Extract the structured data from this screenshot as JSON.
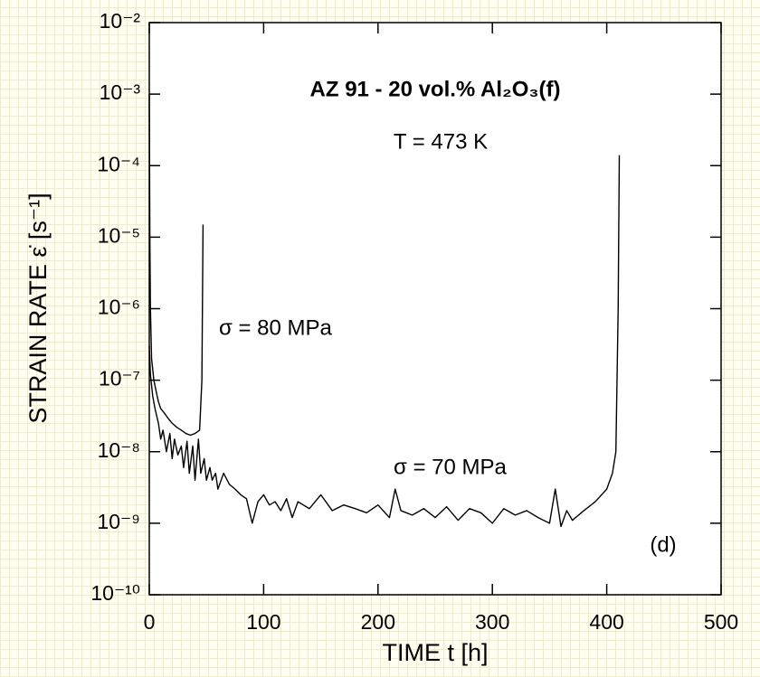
{
  "chart_data": {
    "type": "line",
    "title": "AZ 91 - 20 vol.% Al₂O₃(f)",
    "subtitle": "T = 473 K",
    "annotation": "(d)",
    "x_label": "TIME t [h]",
    "y_label": "STRAIN RATE  ε̇  [s⁻¹]",
    "xlim": [
      0,
      500
    ],
    "xticks": [
      0,
      100,
      200,
      300,
      400,
      500
    ],
    "ylim": [
      1e-10,
      0.01
    ],
    "ylog": true,
    "yticks": [
      {
        "value": 1e-10,
        "label": "10⁻¹⁰"
      },
      {
        "value": 1e-09,
        "label": "10⁻⁹"
      },
      {
        "value": 1e-08,
        "label": "10⁻⁸"
      },
      {
        "value": 1e-07,
        "label": "10⁻⁷"
      },
      {
        "value": 1e-06,
        "label": "10⁻⁶"
      },
      {
        "value": 1e-05,
        "label": "10⁻⁵"
      },
      {
        "value": 0.0001,
        "label": "10⁻⁴"
      },
      {
        "value": 0.001,
        "label": "10⁻³"
      },
      {
        "value": 0.01,
        "label": "10⁻²"
      }
    ],
    "series": [
      {
        "name": "σ = 80 MPa",
        "color": "#000000",
        "x": [
          0,
          0.5,
          1,
          2,
          4,
          6,
          8,
          10,
          13,
          16,
          20,
          24,
          28,
          32,
          36,
          40,
          44,
          46,
          47
        ],
        "values": [
          0.001,
          1e-05,
          1e-06,
          2e-07,
          1e-07,
          7e-08,
          5e-08,
          4e-08,
          3.5e-08,
          3e-08,
          2.5e-08,
          2.2e-08,
          2e-08,
          1.8e-08,
          1.7e-08,
          1.8e-08,
          2e-08,
          1e-07,
          1.5e-05
        ]
      },
      {
        "name": "σ = 70 MPa",
        "color": "#000000",
        "x": [
          0,
          1,
          3,
          5,
          8,
          10,
          12,
          15,
          18,
          20,
          22,
          25,
          28,
          30,
          33,
          35,
          38,
          40,
          43,
          45,
          48,
          50,
          53,
          55,
          58,
          60,
          65,
          70,
          75,
          80,
          85,
          90,
          95,
          100,
          105,
          110,
          115,
          120,
          125,
          130,
          140,
          150,
          160,
          170,
          180,
          190,
          200,
          210,
          215,
          220,
          230,
          240,
          250,
          260,
          270,
          280,
          290,
          300,
          310,
          320,
          330,
          340,
          350,
          355,
          360,
          365,
          370,
          380,
          390,
          400,
          405,
          408,
          410,
          411
        ],
        "values": [
          3e-07,
          1.2e-07,
          6e-08,
          4e-08,
          2.5e-08,
          1.5e-08,
          2e-08,
          1e-08,
          1.8e-08,
          8e-09,
          1.5e-08,
          9e-09,
          1.2e-08,
          6e-09,
          1.4e-08,
          5e-09,
          1.2e-08,
          4e-09,
          1.5e-08,
          5e-09,
          8e-09,
          4e-09,
          6e-09,
          4e-09,
          5e-09,
          3e-09,
          5e-09,
          3.5e-09,
          3e-09,
          2.5e-09,
          2.2e-09,
          1e-09,
          2e-09,
          2.5e-09,
          1.8e-09,
          2e-09,
          1.5e-09,
          2.2e-09,
          1.2e-09,
          2e-09,
          1.6e-09,
          2.5e-09,
          1.5e-09,
          1.8e-09,
          1.6e-09,
          1.4e-09,
          1.8e-09,
          1.2e-09,
          3e-09,
          1.5e-09,
          1.3e-09,
          1.6e-09,
          1.2e-09,
          1.7e-09,
          1.1e-09,
          1.6e-09,
          1.4e-09,
          1e-09,
          1.6e-09,
          1.3e-09,
          1.5e-09,
          1.2e-09,
          1e-09,
          3e-09,
          9e-10,
          1.5e-09,
          1.1e-09,
          1.5e-09,
          2e-09,
          3e-09,
          5e-09,
          1e-08,
          1e-06,
          0.00014
        ]
      }
    ]
  }
}
